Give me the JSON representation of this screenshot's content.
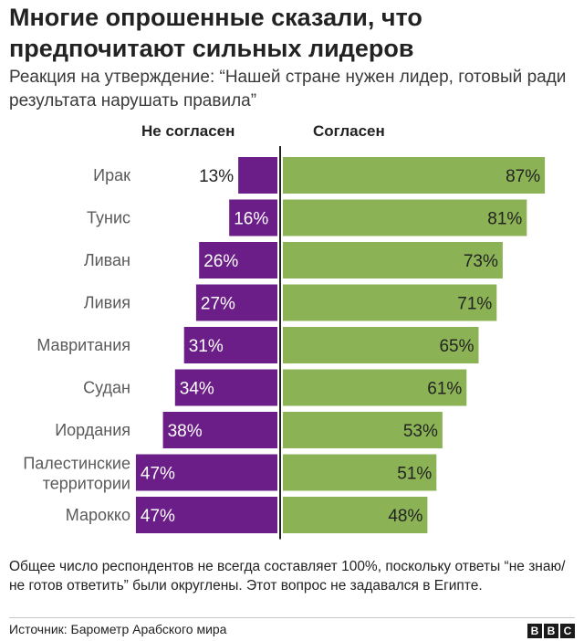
{
  "title": "Многие опрошенные сказали, что предпочитают сильных лидеров",
  "subtitle": "Реакция на утверждение: “Нашей стране нужен лидер, готовый ради результата нарушать правила”",
  "footnote": "Общее число респондентов не всегда составляет 100%, поскольку ответы “не знаю/не готов ответить” были округлены. Этот вопрос не задавался в Египте.",
  "source": "Источник: Барометр Арабского мира",
  "logo": [
    "B",
    "B",
    "C"
  ],
  "colors": {
    "disagree": "#6b1e87",
    "agree": "#8bb356",
    "axis": "#222222",
    "category_label": "#5a5a5a"
  },
  "chart_data": {
    "type": "bar",
    "orientation": "horizontal-diverging",
    "categories": [
      "Ирак",
      "Тунис",
      "Ливан",
      "Ливия",
      "Мавритания",
      "Судан",
      "Иордания",
      "Палестинские территории",
      "Марокко"
    ],
    "series": [
      {
        "name": "Не согласен",
        "values": [
          13,
          16,
          26,
          27,
          31,
          34,
          38,
          47,
          47
        ]
      },
      {
        "name": "Согласен",
        "values": [
          87,
          81,
          73,
          71,
          65,
          61,
          53,
          51,
          48
        ]
      }
    ],
    "value_format": "{v}%",
    "xlim": [
      -50,
      100
    ]
  }
}
